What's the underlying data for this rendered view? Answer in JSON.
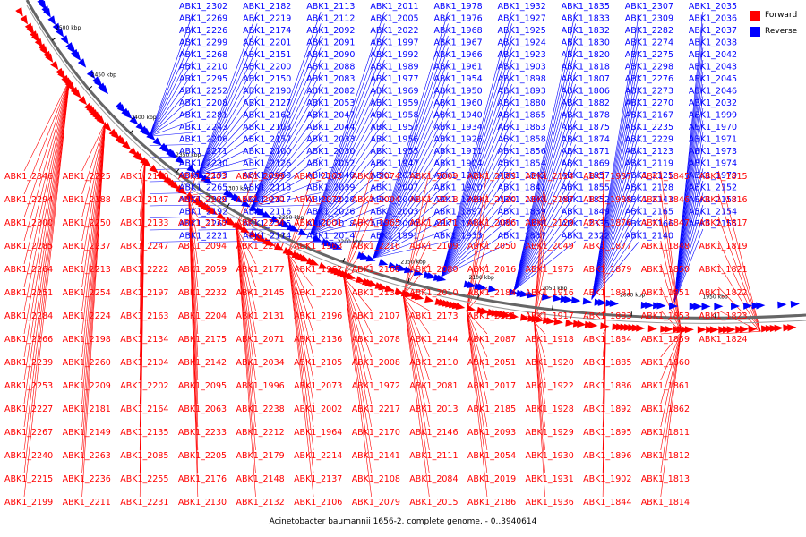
{
  "caption": "Acinetobacter baumannii 1656-2, complete genome. - 0..3940614",
  "legend": {
    "items": [
      {
        "label": "Forward",
        "color": "#ff0000"
      },
      {
        "label": "Reverse",
        "color": "#0000ff"
      }
    ]
  },
  "colors": {
    "forward": "#ff0000",
    "reverse": "#0000ff",
    "backbone": "#666666"
  },
  "ticks": [
    "2500 kbp",
    "2450 kbp",
    "2400 kbp",
    "2350 kbp",
    "2300 kbp",
    "2250 kbp",
    "2200 kbp",
    "2150 kbp",
    "2100 kbp",
    "2050 kbp",
    "2000 kbp",
    "1950 kbp"
  ],
  "reverse_labels": [
    "ABK1_2302",
    "ABK1_2269",
    "ABK1_2226",
    "ABK1_2299",
    "ABK1_2268",
    "ABK1_2210",
    "ABK1_2295",
    "ABK1_2252",
    "ABK1_2208",
    "ABK1_2281",
    "ABK1_2243",
    "ABK1_2206",
    "ABK1_2271",
    "ABK1_2230",
    "ABK1_2193",
    "ABK1_2265",
    "ABK1_2228",
    "ABK1_2192",
    "ABK1_2262",
    "ABK1_2221",
    "ABK1_2182",
    "ABK1_2219",
    "ABK1_2174",
    "ABK1_2201",
    "ABK1_2151",
    "ABK1_2200",
    "ABK1_2150",
    "ABK1_2190",
    "ABK1_2127",
    "ABK1_2162",
    "ABK1_2103",
    "ABK1_2157",
    "ABK1_2100",
    "ABK1_2126",
    "ABK1_2089",
    "ABK1_2118",
    "ABK1_2117",
    "ABK1_2116",
    "ABK1_2115",
    "ABK1_2114",
    "ABK1_2113",
    "ABK1_2112",
    "ABK1_2092",
    "ABK1_2091",
    "ABK1_2090",
    "ABK1_2088",
    "ABK1_2083",
    "ABK1_2082",
    "ABK1_2053",
    "ABK1_2047",
    "ABK1_2044",
    "ABK1_2033",
    "ABK1_2030",
    "ABK1_2052",
    "ABK1_2048",
    "ABK1_2039",
    "ABK1_2028",
    "ABK1_2026",
    "ABK1_2018",
    "ABK1_2014",
    "ABK1_2011",
    "ABK1_2005",
    "ABK1_2022",
    "ABK1_1997",
    "ABK1_1992",
    "ABK1_1989",
    "ABK1_1977",
    "ABK1_1969",
    "ABK1_1959",
    "ABK1_1958",
    "ABK1_1957",
    "ABK1_1956",
    "ABK1_1955",
    "ABK1_1947",
    "ABK1_2012",
    "ABK1_2007",
    "ABK1_2006",
    "ABK1_2003",
    "ABK1_2000",
    "ABK1_1991",
    "ABK1_1978",
    "ABK1_1976",
    "ABK1_1968",
    "ABK1_1967",
    "ABK1_1966",
    "ABK1_1961",
    "ABK1_1954",
    "ABK1_1950",
    "ABK1_1960",
    "ABK1_1940",
    "ABK1_1934",
    "ABK1_1926",
    "ABK1_1911",
    "ABK1_1904",
    "ABK1_1901",
    "ABK1_1900",
    "ABK1_1899",
    "ABK1_1897",
    "ABK1_1894",
    "ABK1_1933",
    "ABK1_1932",
    "ABK1_1927",
    "ABK1_1925",
    "ABK1_1924",
    "ABK1_1923",
    "ABK1_1903",
    "ABK1_1898",
    "ABK1_1893",
    "ABK1_1880",
    "ABK1_1865",
    "ABK1_1863",
    "ABK1_1858",
    "ABK1_1856",
    "ABK1_1854",
    "ABK1_1842",
    "ABK1_1841",
    "ABK1_1840",
    "ABK1_1839",
    "ABK1_1838",
    "ABK1_1837",
    "ABK1_1835",
    "ABK1_1833",
    "ABK1_1832",
    "ABK1_1830",
    "ABK1_1820",
    "ABK1_1818",
    "ABK1_1807",
    "ABK1_1806",
    "ABK1_1882",
    "ABK1_1878",
    "ABK1_1875",
    "ABK1_1874",
    "ABK1_1871",
    "ABK1_1869",
    "ABK1_1857",
    "ABK1_1855",
    "ABK1_1852",
    "ABK1_1849",
    "ABK1_2335",
    "ABK1_2322",
    "ABK1_2307",
    "ABK1_2309",
    "ABK1_2282",
    "ABK1_2274",
    "ABK1_2275",
    "ABK1_2298",
    "ABK1_2276",
    "ABK1_2273",
    "ABK1_2270",
    "ABK1_2167",
    "ABK1_2235",
    "ABK1_2229",
    "ABK1_2123",
    "ABK1_2119",
    "ABK1_2125",
    "ABK1_2128",
    "ABK1_2143",
    "ABK1_2165",
    "ABK1_2166",
    "ABK1_2140",
    "ABK1_2035",
    "ABK1_2036",
    "ABK1_2037",
    "ABK1_2038",
    "ABK1_2042",
    "ABK1_2043",
    "ABK1_2045",
    "ABK1_2046",
    "ABK1_2032",
    "ABK1_1999",
    "ABK1_1970",
    "ABK1_1971",
    "ABK1_1973",
    "ABK1_1974",
    "ABK1_1979",
    "ABK1_2152",
    "ABK1_2153",
    "ABK1_2154",
    "ABK1_2155"
  ],
  "forward_labels": [
    "ABK1_2346",
    "ABK1_2294",
    "ABK1_2300",
    "ABK1_2285",
    "ABK1_2264",
    "ABK1_2251",
    "ABK1_2284",
    "ABK1_2266",
    "ABK1_2239",
    "ABK1_2253",
    "ABK1_2227",
    "ABK1_2267",
    "ABK1_2240",
    "ABK1_2215",
    "ABK1_2199",
    "ABK1_2225",
    "ABK1_2188",
    "ABK1_2250",
    "ABK1_2237",
    "ABK1_2213",
    "ABK1_2254",
    "ABK1_2224",
    "ABK1_2198",
    "ABK1_2260",
    "ABK1_2209",
    "ABK1_2181",
    "ABK1_2149",
    "ABK1_2263",
    "ABK1_2236",
    "ABK1_2211",
    "ABK1_2180",
    "ABK1_2147",
    "ABK1_2133",
    "ABK1_2247",
    "ABK1_2222",
    "ABK1_2197",
    "ABK1_2163",
    "ABK1_2134",
    "ABK1_2104",
    "ABK1_2202",
    "ABK1_2164",
    "ABK1_2135",
    "ABK1_2085",
    "ABK1_2255",
    "ABK1_2231",
    "ABK1_2203",
    "ABK1_2169",
    "ABK1_2138",
    "ABK1_2094",
    "ABK1_2059",
    "ABK1_2232",
    "ABK1_2204",
    "ABK1_2175",
    "ABK1_2142",
    "ABK1_2095",
    "ABK1_2063",
    "ABK1_2233",
    "ABK1_2205",
    "ABK1_2176",
    "ABK1_2130",
    "ABK1_2099",
    "ABK1_2070",
    "ABK1_2234",
    "ABK1_2207",
    "ABK1_2177",
    "ABK1_2145",
    "ABK1_2131",
    "ABK1_2071",
    "ABK1_2034",
    "ABK1_1996",
    "ABK1_2238",
    "ABK1_2212",
    "ABK1_2179",
    "ABK1_2148",
    "ABK1_2132",
    "ABK1_2102",
    "ABK1_2072",
    "ABK1_2001",
    "ABK1_1963",
    "ABK1_1962",
    "ABK1_2220",
    "ABK1_2196",
    "ABK1_2136",
    "ABK1_2105",
    "ABK1_2073",
    "ABK1_2002",
    "ABK1_1964",
    "ABK1_2214",
    "ABK1_2137",
    "ABK1_2106",
    "ABK1_2074",
    "ABK1_2004",
    "ABK1_1965",
    "ABK1_2216",
    "ABK1_2168",
    "ABK1_2139",
    "ABK1_2107",
    "ABK1_2078",
    "ABK1_2008",
    "ABK1_1972",
    "ABK1_2217",
    "ABK1_2170",
    "ABK1_2141",
    "ABK1_2108",
    "ABK1_2079",
    "ABK1_2009",
    "ABK1_2218",
    "ABK1_2171",
    "ABK1_2109",
    "ABK1_2080",
    "ABK1_2010",
    "ABK1_2173",
    "ABK1_2144",
    "ABK1_2110",
    "ABK1_2081",
    "ABK1_2013",
    "ABK1_2146",
    "ABK1_2111",
    "ABK1_2084",
    "ABK1_2015",
    "ABK1_2183",
    "ABK1_2120",
    "ABK1_2086",
    "ABK1_2050",
    "ABK1_2016",
    "ABK1_2184",
    "ABK1_2121",
    "ABK1_2087",
    "ABK1_2051",
    "ABK1_2017",
    "ABK1_2185",
    "ABK1_2093",
    "ABK1_2054",
    "ABK1_2019",
    "ABK1_2186",
    "ABK1_2124",
    "ABK1_2187",
    "ABK1_2129",
    "ABK1_2049",
    "ABK1_1975",
    "ABK1_1916",
    "ABK1_1917",
    "ABK1_1918",
    "ABK1_1920",
    "ABK1_1922",
    "ABK1_1928",
    "ABK1_1929",
    "ABK1_1930",
    "ABK1_1931",
    "ABK1_1936",
    "ABK1_1937",
    "ABK1_1938",
    "ABK1_1876",
    "ABK1_1877",
    "ABK1_1879",
    "ABK1_1881",
    "ABK1_1883",
    "ABK1_1884",
    "ABK1_1885",
    "ABK1_1886",
    "ABK1_1892",
    "ABK1_1895",
    "ABK1_1896",
    "ABK1_1902",
    "ABK1_1844",
    "ABK1_1845",
    "ABK1_1846",
    "ABK1_1847",
    "ABK1_1848",
    "ABK1_1850",
    "ABK1_1851",
    "ABK1_1853",
    "ABK1_1859",
    "ABK1_1860",
    "ABK1_1861",
    "ABK1_1862",
    "ABK1_1811",
    "ABK1_1812",
    "ABK1_1813",
    "ABK1_1814",
    "ABK1_1815",
    "ABK1_1816",
    "ABK1_1817",
    "ABK1_1819",
    "ABK1_1821",
    "ABK1_1822",
    "ABK1_1823",
    "ABK1_1824"
  ]
}
